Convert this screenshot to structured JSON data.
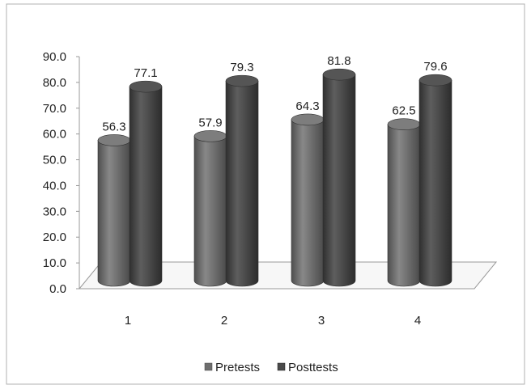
{
  "chart_data": {
    "type": "bar",
    "categories": [
      "1",
      "2",
      "3",
      "4"
    ],
    "series": [
      {
        "name": "Pretests",
        "values": [
          56.3,
          57.9,
          64.3,
          62.5
        ],
        "color": "#6e6e6e"
      },
      {
        "name": "Posttests",
        "values": [
          77.1,
          79.3,
          81.8,
          79.6
        ],
        "color": "#4a4a4a"
      }
    ],
    "ylim": [
      0,
      90
    ],
    "y_ticks": [
      "0.0",
      "10.0",
      "20.0",
      "30.0",
      "40.0",
      "50.0",
      "60.0",
      "70.0",
      "80.0",
      "90.0"
    ],
    "data_labels": [
      [
        "56.3",
        "57.9",
        "64.3",
        "62.5"
      ],
      [
        "77.1",
        "79.3",
        "81.8",
        "79.6"
      ]
    ],
    "style": "3d-cylinder",
    "legend_position": "bottom",
    "grid": false
  }
}
